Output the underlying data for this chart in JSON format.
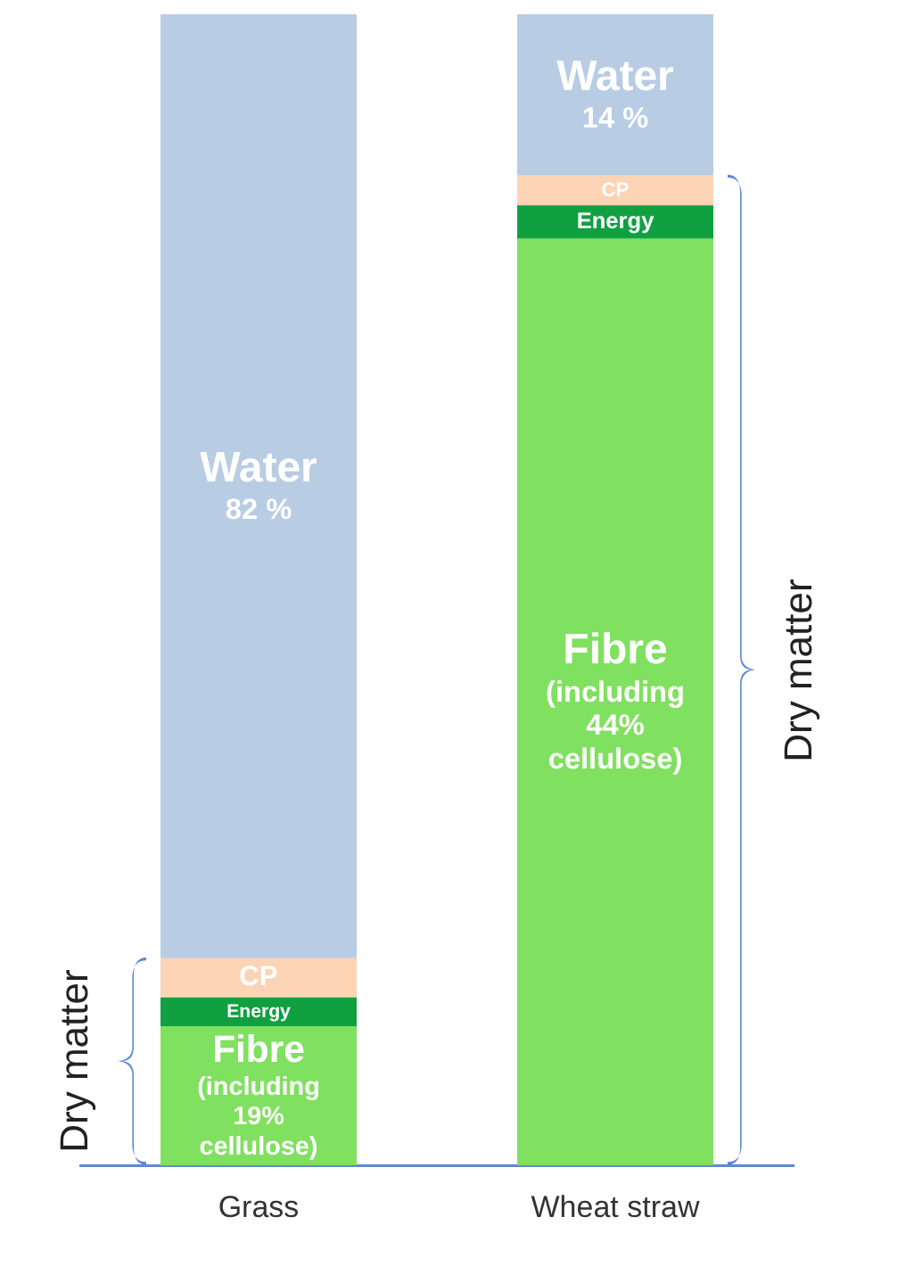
{
  "chart_data": {
    "type": "bar",
    "stacked": true,
    "ylim": [
      0,
      100
    ],
    "categories": [
      "Grass",
      "Wheat straw"
    ],
    "series": [
      {
        "color": "#80e060",
        "values": [
          12.1,
          80.5
        ],
        "value_labels": [
          "Fibre\n(including\n19%\ncellulose)",
          "Fibre\n(including\n44%\ncellulose)"
        ]
      },
      {
        "color": "#10a040",
        "values": [
          2.5,
          2.9
        ],
        "value_labels": [
          "Energy",
          "Energy"
        ]
      },
      {
        "color": "#fbd3b5",
        "values": [
          3.4,
          2.6
        ],
        "value_labels": [
          "CP",
          "CP"
        ]
      },
      {
        "color": "#b8cce4",
        "values": [
          82,
          14
        ],
        "value_labels": [
          "Water\n82 %",
          "Water\n14 %"
        ]
      }
    ],
    "annotations": [
      "Dry matter",
      "Dry matter"
    ],
    "grid": false
  }
}
